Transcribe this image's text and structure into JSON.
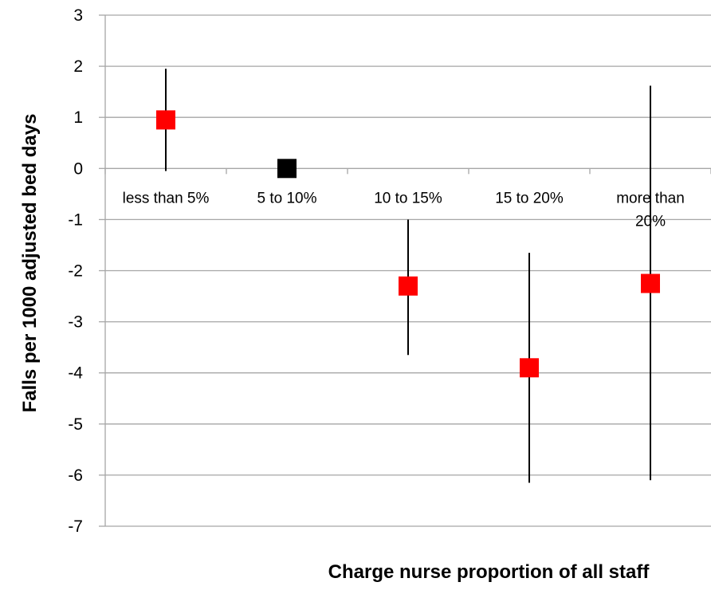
{
  "chart_data": {
    "type": "scatter",
    "title": "",
    "xlabel": "Charge nurse proportion of all staff",
    "ylabel": "Falls per 1000 adjusted bed days",
    "ylim": [
      -7,
      3
    ],
    "yticks": [
      3,
      2,
      1,
      0,
      -1,
      -2,
      -3,
      -4,
      -5,
      -6,
      -7
    ],
    "grid": true,
    "legend": "none",
    "categories": [
      "less than 5%",
      "5 to 10%",
      "10 to 15%",
      "15 to 20%",
      "more than 20%"
    ],
    "category_label_lines": [
      [
        "less than 5%"
      ],
      [
        "5 to 10%"
      ],
      [
        "10 to 15%"
      ],
      [
        "15 to 20%"
      ],
      [
        "more than",
        "20%"
      ]
    ],
    "series": [
      {
        "values": [
          0.95,
          0.0,
          -2.3,
          -3.9,
          -2.25
        ],
        "error_low": [
          -0.05,
          null,
          -3.65,
          -6.15,
          -6.1
        ],
        "error_high": [
          1.95,
          null,
          -1.0,
          -1.65,
          1.62
        ]
      }
    ],
    "colors": {
      "marker": "#ff0000",
      "reference_marker": "#000000",
      "reference_index": 1,
      "error_bar": "#000000",
      "grid": "#a6a6a6"
    }
  }
}
